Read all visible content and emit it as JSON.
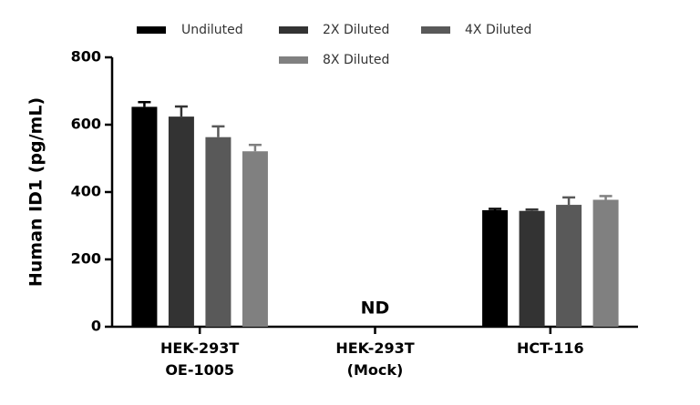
{
  "chart_data": {
    "type": "bar",
    "y_label": "Human ID1 (pg/mL)",
    "categories": [
      "HEK-293T\nOE-1005",
      "HEK-293T\n(Mock)",
      "HCT-116"
    ],
    "series": [
      {
        "name": "Undiluted",
        "color": "#000000",
        "values": [
          653,
          null,
          346
        ],
        "errors": [
          14,
          null,
          4
        ]
      },
      {
        "name": "2X Diluted",
        "color": "#333333",
        "values": [
          624,
          null,
          344
        ],
        "errors": [
          30,
          null,
          4
        ]
      },
      {
        "name": "4X Diluted",
        "color": "#595959",
        "values": [
          563,
          null,
          362
        ],
        "errors": [
          32,
          null,
          22
        ]
      },
      {
        "name": "8X Diluted",
        "color": "#808080",
        "values": [
          521,
          null,
          377
        ],
        "errors": [
          19,
          null,
          11
        ]
      }
    ],
    "annotations": [
      {
        "text": "ND",
        "category": 1
      }
    ],
    "ylim": [
      0,
      800
    ],
    "yticks": [
      0,
      200,
      400,
      600,
      800
    ]
  }
}
